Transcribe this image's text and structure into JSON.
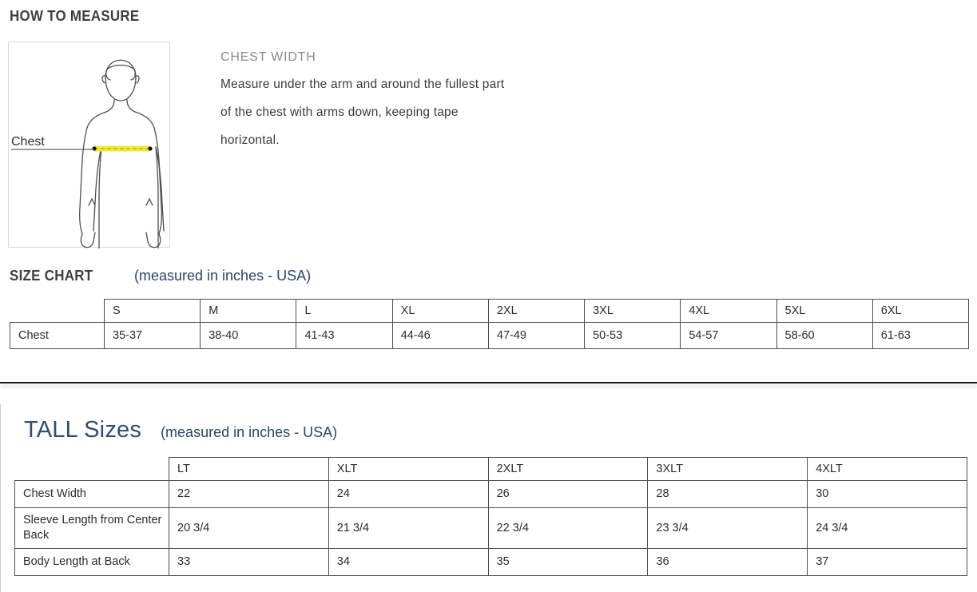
{
  "how_to_measure": {
    "title": "HOW TO MEASURE",
    "measure_label": "CHEST WIDTH",
    "description_lines": [
      "Measure under the arm and around the fullest part",
      "of the chest with arms down, keeping tape",
      "horizontal."
    ],
    "figure_label": "Chest"
  },
  "size_chart": {
    "title": "SIZE CHART",
    "subtitle": "(measured in inches - USA)",
    "columns": [
      "S",
      "M",
      "L",
      "XL",
      "2XL",
      "3XL",
      "4XL",
      "5XL",
      "6XL"
    ],
    "rows": [
      {
        "label": "Chest",
        "values": [
          "35-37",
          "38-40",
          "41-43",
          "44-46",
          "47-49",
          "50-53",
          "54-57",
          "58-60",
          "61-63"
        ]
      }
    ]
  },
  "tall_sizes": {
    "title": "TALL Sizes",
    "subtitle": "(measured in inches - USA)",
    "columns": [
      "LT",
      "XLT",
      "2XLT",
      "3XLT",
      "4XLT"
    ],
    "rows": [
      {
        "label": "Chest Width",
        "values": [
          "22",
          "24",
          "26",
          "28",
          "30"
        ]
      },
      {
        "label": "Sleeve Length from Center Back",
        "values": [
          "20 3/4",
          "21 3/4",
          "22 3/4",
          "23 3/4",
          "24 3/4"
        ]
      },
      {
        "label": "Body Length at Back",
        "values": [
          "33",
          "34",
          "35",
          "36",
          "37"
        ]
      }
    ]
  },
  "colors": {
    "heading_text": "#3d3d47",
    "navy_accent": "#2e4e79",
    "subtitle_navy": "#26466b",
    "table_border": "#4d4d4d",
    "tape_yellow": "#f2e73b",
    "tape_dash": "#cbc21c",
    "divider": "#1c1c1c"
  }
}
